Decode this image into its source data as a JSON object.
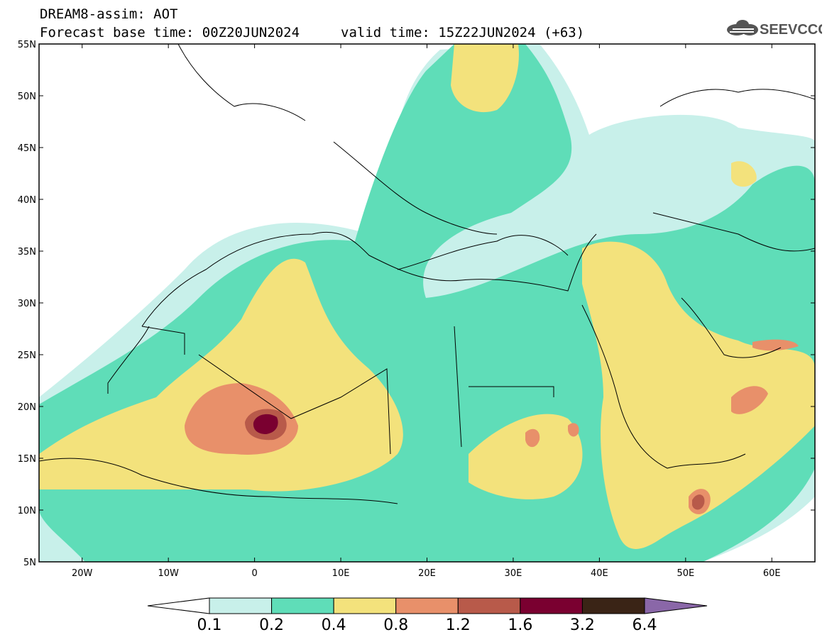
{
  "header": {
    "title": "DREAM8-assim: AOT",
    "base_time": "Forecast base time: 00Z20JUN2024",
    "valid_time": "valid time: 15Z22JUN2024 (+63)"
  },
  "logo": {
    "text": "SEEVCCC",
    "icon": "cloud-icon"
  },
  "map": {
    "projection": "equirectangular",
    "lon_range": [
      -25,
      65
    ],
    "lat_range": [
      5,
      55
    ],
    "lat_ticks": [
      "5N",
      "10N",
      "15N",
      "20N",
      "25N",
      "30N",
      "35N",
      "40N",
      "45N",
      "50N",
      "55N"
    ],
    "lon_ticks": [
      "20W",
      "10W",
      "0",
      "10E",
      "20E",
      "30E",
      "40E",
      "50E",
      "60E"
    ]
  },
  "legend": {
    "levels": [
      "0.1",
      "0.2",
      "0.4",
      "0.8",
      "1.2",
      "1.6",
      "3.2",
      "6.4"
    ],
    "colors": [
      "#c8f0ea",
      "#5fddb8",
      "#f3e27c",
      "#e8906a",
      "#b85a4a",
      "#7a0030",
      "#3a2416",
      "#8a67a8"
    ]
  }
}
